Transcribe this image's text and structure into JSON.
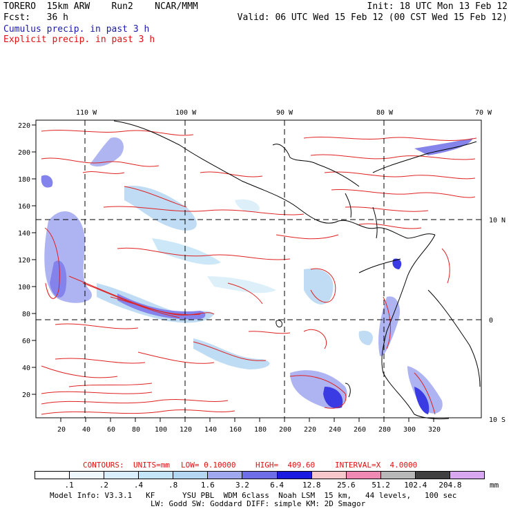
{
  "header": {
    "line1_left": "TORERO  15km ARW    Run2    NCAR/MMM",
    "line1_right": "Init: 18 UTC Mon 13 Feb 12",
    "line2_left": "Fcst:   36 h",
    "line2_right": "Valid: 06 UTC Wed 15 Feb 12 (00 CST Wed 15 Feb 12)",
    "legend_cumulus": "Cumulus precip. in past 3 h",
    "legend_explicit": "Explicit precip. in past 3 h"
  },
  "map": {
    "top_labels": [
      "110 W",
      "100 W",
      "90 W",
      "80 W",
      "70 W"
    ],
    "right_labels": [
      "10 N",
      "0",
      "10 S"
    ],
    "y_ticks": [
      "220",
      "200",
      "180",
      "160",
      "140",
      "120",
      "100",
      "80",
      "60",
      "40",
      "20"
    ],
    "x_ticks": [
      "20",
      "40",
      "60",
      "80",
      "100",
      "120",
      "140",
      "160",
      "180",
      "200",
      "220",
      "240",
      "260",
      "280",
      "300",
      "320"
    ]
  },
  "contour_info": {
    "contours_label": "CONTOURS:",
    "units": "UNITS=mm",
    "low": "LOW= 0.10000",
    "high": "HIGH=  409.60",
    "interval": "INTERVAL=X  4.0000"
  },
  "colorbar": {
    "labels": [
      ".1",
      ".2",
      ".4",
      ".8",
      "1.6",
      "3.2",
      "6.4",
      "12.8",
      "25.6",
      "51.2",
      "102.4",
      "204.8"
    ],
    "unit": "mm",
    "colors": [
      "#ffffff",
      "#eef7fb",
      "#d8eefa",
      "#c4e4f7",
      "#b4d6f3",
      "#a0a8ef",
      "#6e6ee8",
      "#1a1ae0",
      "#f6c8cc",
      "#f088b4",
      "#b8b8b8",
      "#404040",
      "#d8a8f0"
    ]
  },
  "footer": {
    "line1": "Model Info: V3.3.1   KF      YSU PBL  WDM 6class  Noah LSM  15 km,   44 levels,   100 sec",
    "line2": "LW: Godd SW: Goddard DIFF: simple KM: 2D Smagor"
  }
}
